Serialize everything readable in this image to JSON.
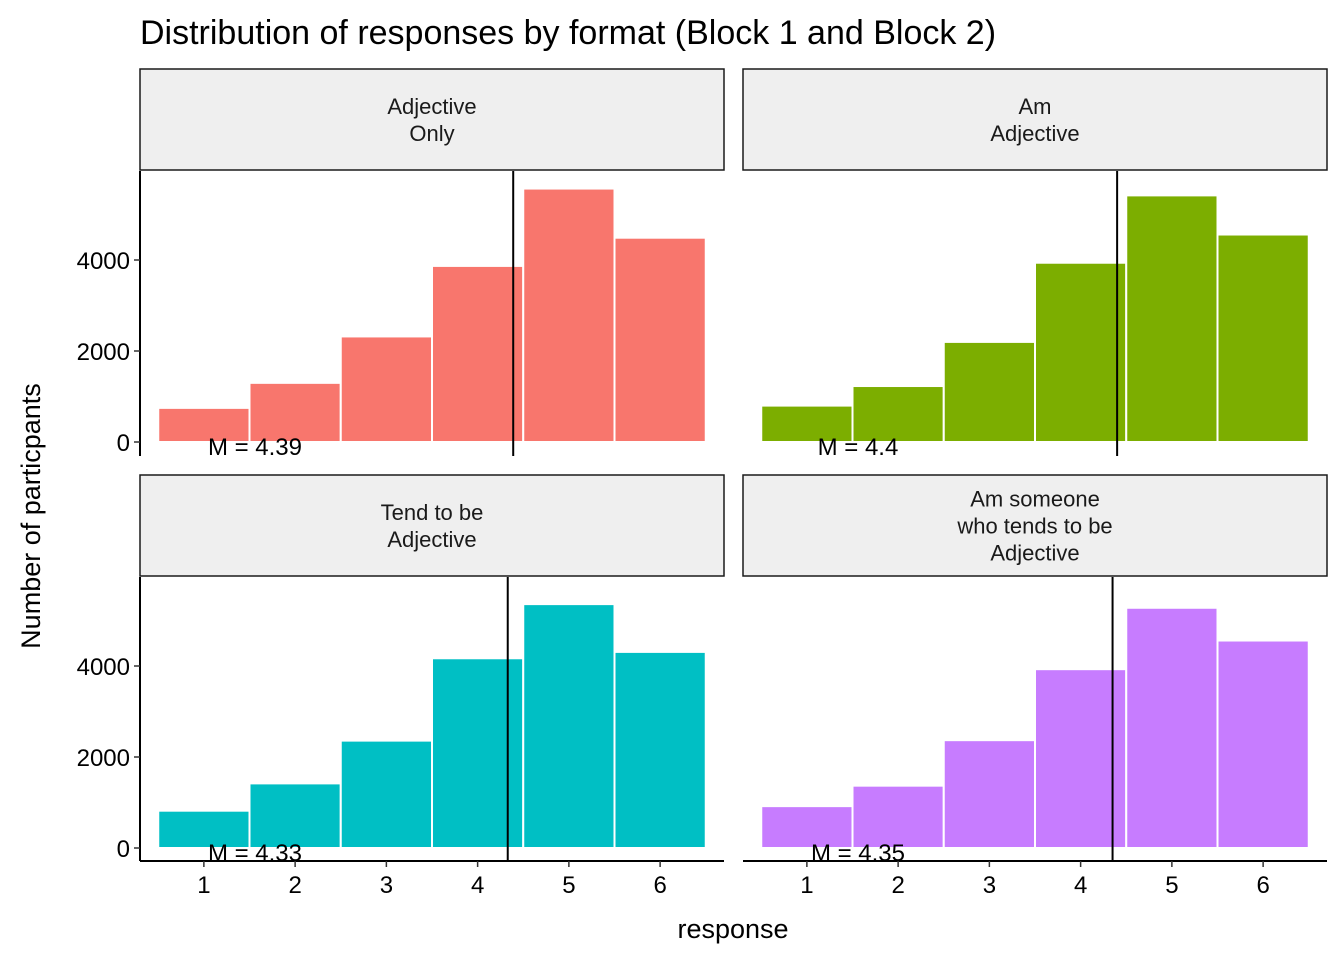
{
  "chart_data": {
    "type": "bar",
    "title": "Distribution of responses by format (Block 1 and Block 2)",
    "xlabel": "response",
    "ylabel": "Number of particpants",
    "x_ticks": [
      "1",
      "2",
      "3",
      "4",
      "5",
      "6"
    ],
    "y_ticks": [
      "0",
      "2000",
      "4000"
    ],
    "ylim": [
      0,
      5900
    ],
    "xlim": [
      0.3,
      6.7
    ],
    "mean_prefix": "M = ",
    "panels": [
      {
        "label_lines": [
          "Adjective",
          "Only"
        ],
        "color": "#F8766D",
        "categories": [
          1,
          2,
          3,
          4,
          5,
          6
        ],
        "values": [
          750,
          1300,
          2320,
          3870,
          5570,
          4490
        ],
        "mean": 4.39,
        "mean_label": "4.39"
      },
      {
        "label_lines": [
          "Am",
          "Adjective"
        ],
        "color": "#7CAE00",
        "categories": [
          1,
          2,
          3,
          4,
          5,
          6
        ],
        "values": [
          800,
          1230,
          2200,
          3940,
          5420,
          4560
        ],
        "mean": 4.4,
        "mean_label": "4.4"
      },
      {
        "label_lines": [
          "Tend to be",
          "Adjective"
        ],
        "color": "#00BFC4",
        "categories": [
          1,
          2,
          3,
          4,
          5,
          6
        ],
        "values": [
          820,
          1420,
          2360,
          4170,
          5360,
          4310
        ],
        "mean": 4.33,
        "mean_label": "4.33"
      },
      {
        "label_lines": [
          "Am someone",
          "who tends to be",
          "Adjective"
        ],
        "color": "#C77CFF",
        "categories": [
          1,
          2,
          3,
          4,
          5,
          6
        ],
        "values": [
          920,
          1370,
          2370,
          3930,
          5280,
          4560
        ],
        "mean": 4.35,
        "mean_label": "4.35"
      }
    ]
  }
}
